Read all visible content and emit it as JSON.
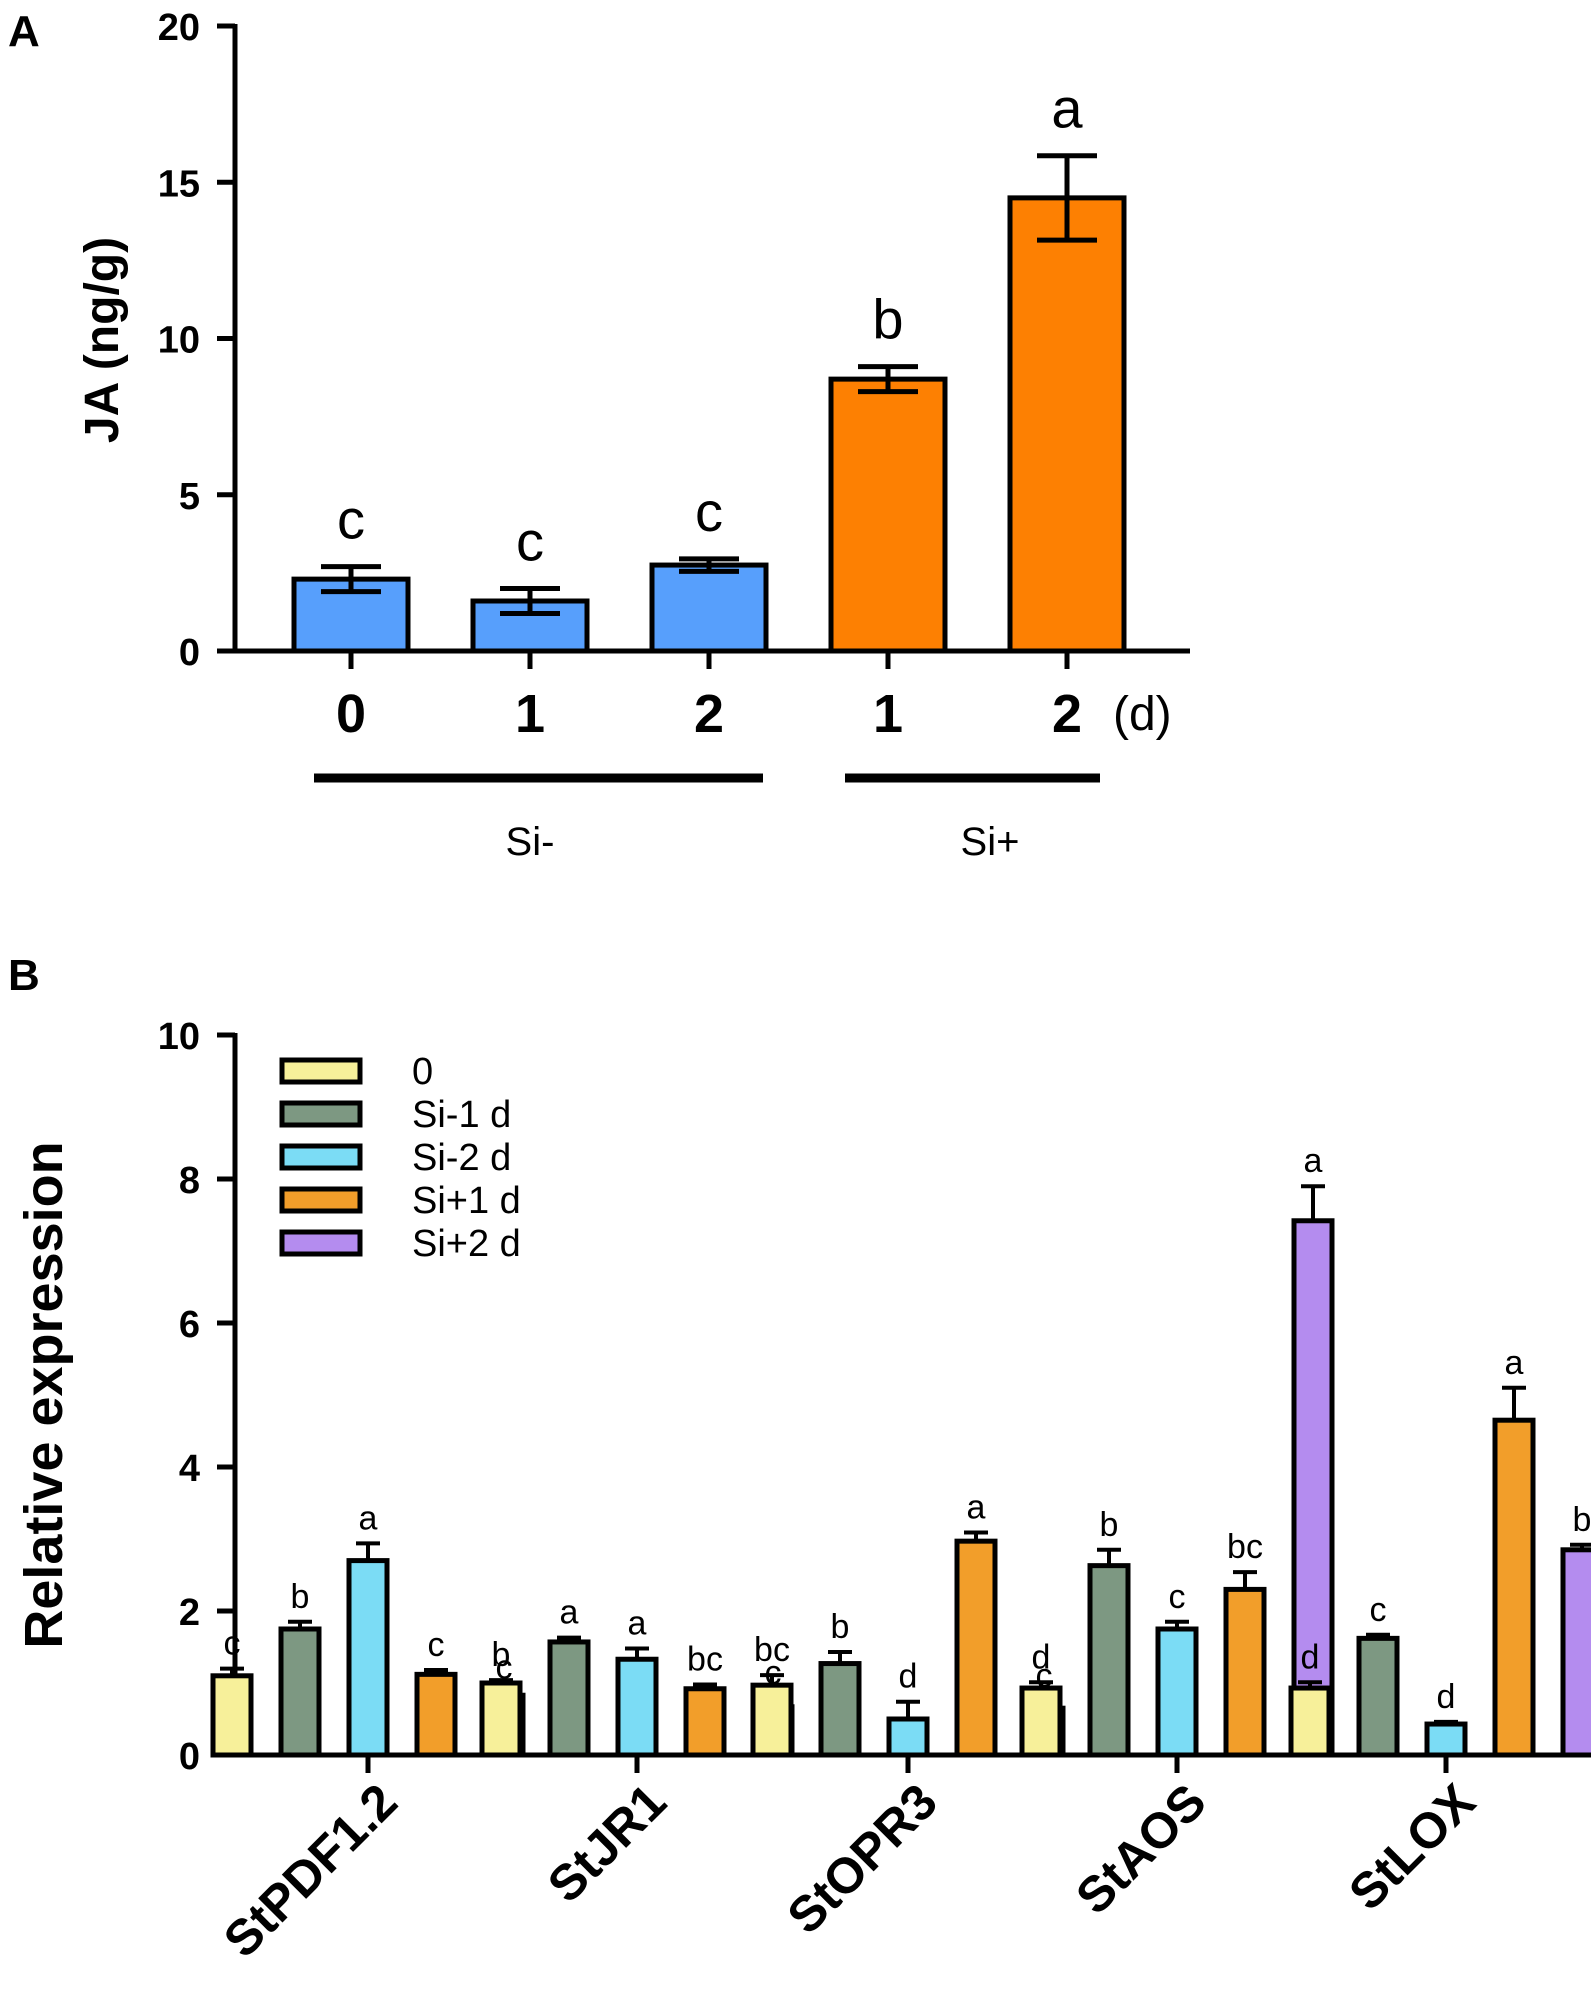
{
  "chart_data": [
    {
      "panel": "A",
      "type": "bar",
      "ylabel": "JA (ng/g)",
      "ylim": [
        0,
        20
      ],
      "yticks": [
        0,
        5,
        10,
        15,
        20
      ],
      "categories": [
        "0",
        "1",
        "2",
        "1",
        "2"
      ],
      "x_unit": "(d)",
      "values": [
        2.3,
        1.6,
        2.75,
        8.7,
        14.5
      ],
      "errors": [
        0.4,
        0.4,
        0.2,
        0.4,
        1.35
      ],
      "significance": [
        "c",
        "c",
        "c",
        "b",
        "a"
      ],
      "groups": [
        {
          "label": "Si-",
          "members": [
            0,
            1,
            2
          ],
          "color": "#579ffc"
        },
        {
          "label": "Si+",
          "members": [
            3,
            4
          ],
          "color": "#fd8002"
        }
      ],
      "bar_colors": [
        "#579ffc",
        "#579ffc",
        "#579ffc",
        "#fd8002",
        "#fd8002"
      ]
    },
    {
      "panel": "B",
      "type": "bar",
      "ylabel": "Relative expression",
      "ylim": [
        0,
        10
      ],
      "yticks": [
        0,
        2,
        4,
        6,
        8,
        10
      ],
      "categories": [
        "StPDF1.2",
        "StJR1",
        "StOPR3",
        "StAOS",
        "StLOX"
      ],
      "legend_position": "top-left",
      "series": [
        {
          "name": "0",
          "color": "#f7f09a",
          "values": [
            1.1,
            1.0,
            0.97,
            0.93,
            0.93
          ],
          "errors": [
            0.1,
            0.04,
            0.14,
            0.08,
            0.08
          ],
          "significance": [
            "c",
            "b",
            "bc",
            "d",
            "d"
          ]
        },
        {
          "name": "Si-1 d",
          "color": "#7d9882",
          "values": [
            1.75,
            1.57,
            1.27,
            2.63,
            1.62
          ],
          "errors": [
            0.1,
            0.06,
            0.16,
            0.22,
            0.05
          ],
          "significance": [
            "b",
            "a",
            "b",
            "b",
            "c"
          ]
        },
        {
          "name": "Si-2 d",
          "color": "#7bdcf5",
          "values": [
            2.7,
            1.33,
            0.5,
            1.75,
            0.43
          ],
          "errors": [
            0.24,
            0.15,
            0.24,
            0.1,
            0.03
          ],
          "significance": [
            "a",
            "a",
            "d",
            "c",
            "d"
          ]
        },
        {
          "name": "Si+1 d",
          "color": "#f29e2a",
          "values": [
            1.12,
            0.92,
            2.97,
            2.3,
            4.65
          ],
          "errors": [
            0.06,
            0.06,
            0.12,
            0.24,
            0.45
          ],
          "significance": [
            "c",
            "bc",
            "a",
            "bc",
            "a"
          ]
        },
        {
          "name": "Si+2 d",
          "color": "#b48cef",
          "values": [
            0.83,
            0.67,
            0.65,
            7.42,
            2.85
          ],
          "errors": [
            0.04,
            0.12,
            0.1,
            0.48,
            0.07
          ],
          "significance": [
            "c",
            "c",
            "c",
            "a",
            "b"
          ]
        }
      ]
    }
  ]
}
